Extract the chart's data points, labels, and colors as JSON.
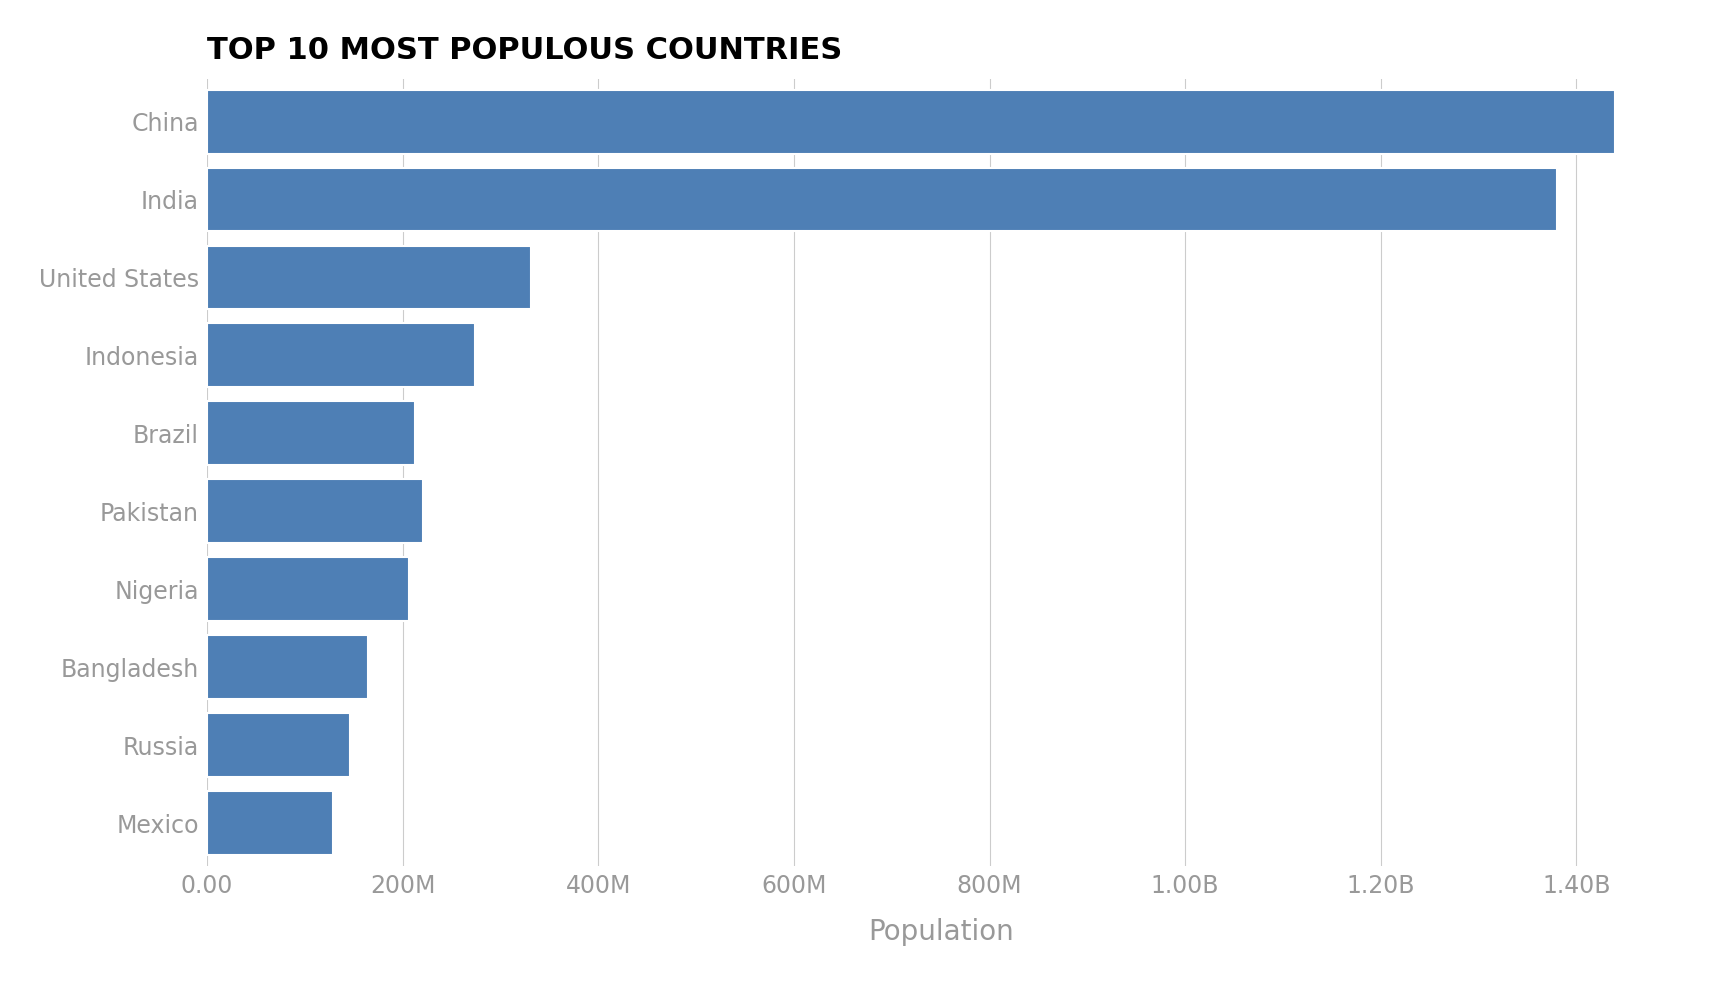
{
  "title": "TOP 10 MOST POPULOUS COUNTRIES",
  "xlabel": "Population",
  "countries": [
    "China",
    "India",
    "United States",
    "Indonesia",
    "Brazil",
    "Pakistan",
    "Nigeria",
    "Bangladesh",
    "Russia",
    "Mexico"
  ],
  "populations": [
    1439323776,
    1380004385,
    331002651,
    273523615,
    212559417,
    220892340,
    206139589,
    164689383,
    145934462,
    128932753
  ],
  "bar_color": "#4e7fb5",
  "bar_edgecolor": "white",
  "title_fontsize": 22,
  "title_fontweight": "bold",
  "title_color": "#000000",
  "label_fontsize": 20,
  "tick_fontsize": 17,
  "tick_color": "#999999",
  "label_color": "#999999",
  "background_color": "#ffffff",
  "grid_color": "#cccccc",
  "xlim": [
    0,
    1500000000
  ],
  "xticks": [
    0,
    200000000,
    400000000,
    600000000,
    800000000,
    1000000000,
    1200000000,
    1400000000
  ],
  "xtick_labels": [
    "0.00",
    "200M",
    "400M",
    "600M",
    "800M",
    "1.00B",
    "1.20B",
    "1.40B"
  ]
}
